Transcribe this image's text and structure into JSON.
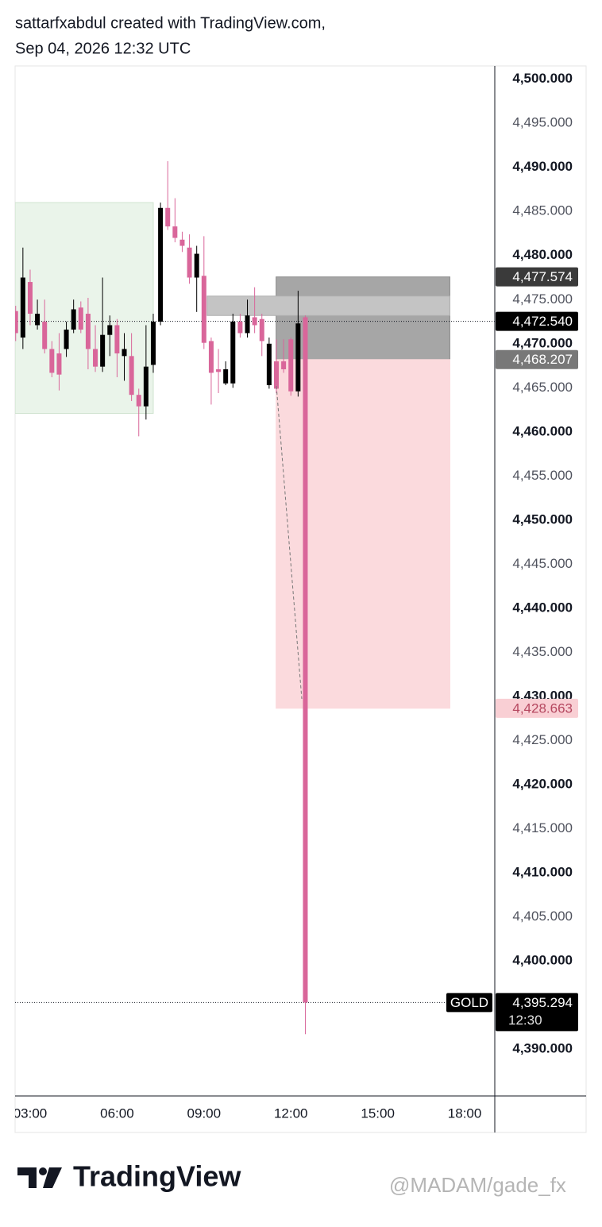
{
  "header": {
    "line1": "sattarfxabdul created with TradingView.com,",
    "line2": "Sep 04, 2026 12:32 UTC"
  },
  "chart_data": {
    "type": "candlestick",
    "symbol": "GOLD",
    "up_color": "#000000",
    "down_color": "#d9669a",
    "x": [
      2.5,
      2.75,
      3,
      3.25,
      3.5,
      3.75,
      4,
      4.25,
      4.5,
      4.75,
      5,
      5.25,
      5.5,
      5.75,
      6,
      6.25,
      6.5,
      6.75,
      7,
      7.25,
      7.5,
      7.75,
      8,
      8.25,
      8.5,
      8.75,
      9,
      9.25,
      9.5,
      9.75,
      10,
      10.25,
      10.5,
      10.75,
      11,
      11.25,
      11.5,
      11.75,
      12,
      12.25,
      12.5
    ],
    "open": [
      4473.7,
      4470.7,
      4477.0,
      4472.1,
      4472.5,
      4469.4,
      4468.9,
      4469.4,
      4471.6,
      4474.1,
      4473.4,
      4469.4,
      4467.4,
      4471.0,
      4472.1,
      4468.6,
      4468.6,
      4464.2,
      4462.9,
      4467.6,
      4472.5,
      4485.4,
      4483.3,
      4481.8,
      4480.9,
      4477.5,
      4477.7,
      4470.3,
      4467.1,
      4465.5,
      4465.5,
      4472.5,
      4471.2,
      4473.0,
      4472.8,
      4465.3,
      4468.0,
      4468.0,
      4470.5,
      4464.6,
      4473.0
    ],
    "high": [
      4474.3,
      4480.9,
      4478.4,
      4475.0,
      4475.0,
      4470.3,
      4471.2,
      4472.5,
      4475.0,
      4474.8,
      4475.2,
      4472.1,
      4477.5,
      4473.2,
      4472.8,
      4471.2,
      4471.2,
      4464.9,
      4472.1,
      4473.4,
      4486.0,
      4490.7,
      4486.5,
      4482.7,
      4482.4,
      4481.1,
      4482.2,
      4470.7,
      4469.4,
      4468.0,
      4473.4,
      4473.4,
      4475.0,
      4476.4,
      4473.4,
      4470.7,
      4470.5,
      4470.5,
      4470.7,
      4476.0,
      4473.2
    ],
    "low": [
      4470.3,
      4469.4,
      4472.1,
      4471.6,
      4468.9,
      4466.2,
      4464.7,
      4468.5,
      4471.2,
      4471.2,
      4467.1,
      4466.8,
      4466.8,
      4468.6,
      4466.2,
      4465.8,
      4463.5,
      4459.5,
      4461.4,
      4466.7,
      4472.1,
      4482.9,
      4481.5,
      4480.4,
      4476.8,
      4473.6,
      4469.4,
      4463.1,
      4464.4,
      4465.3,
      4465.0,
      4470.7,
      4470.7,
      4471.2,
      4468.6,
      4464.9,
      4464.4,
      4466.7,
      4464.1,
      4464.0,
      4391.7
    ],
    "close": [
      4471.2,
      4477.5,
      4473.4,
      4473.4,
      4469.4,
      4466.7,
      4466.5,
      4471.6,
      4473.9,
      4471.6,
      4469.4,
      4467.4,
      4471.0,
      4472.1,
      4468.9,
      4469.4,
      4464.2,
      4462.9,
      4467.4,
      4472.5,
      4485.4,
      4483.3,
      4482.0,
      4481.1,
      4477.5,
      4480.2,
      4470.1,
      4466.7,
      4466.8,
      4467.1,
      4472.5,
      4471.2,
      4473.2,
      4472.1,
      4470.3,
      4470.0,
      4464.9,
      4467.1,
      4464.6,
      4472.3,
      4395.294
    ],
    "xlim": [
      2.48,
      19.04
    ],
    "xticks": [
      {
        "value": 3,
        "label": "03:00"
      },
      {
        "value": 6,
        "label": "06:00"
      },
      {
        "value": 9,
        "label": "09:00"
      },
      {
        "value": 12,
        "label": "12:00"
      },
      {
        "value": 15,
        "label": "15:00"
      },
      {
        "value": 18,
        "label": "18:00"
      }
    ],
    "ylim": [
      4384.7,
      4501.5
    ],
    "yticks": [
      {
        "value": 4390,
        "label": "4,390.000"
      },
      {
        "value": 4395,
        "label": "4,395.000"
      },
      {
        "value": 4400,
        "label": "4,400.000"
      },
      {
        "value": 4405,
        "label": "4,405.000"
      },
      {
        "value": 4410,
        "label": "4,410.000"
      },
      {
        "value": 4415,
        "label": "4,415.000"
      },
      {
        "value": 4420,
        "label": "4,420.000"
      },
      {
        "value": 4425,
        "label": "4,425.000"
      },
      {
        "value": 4430,
        "label": "4,430.000"
      },
      {
        "value": 4435,
        "label": "4,435.000"
      },
      {
        "value": 4440,
        "label": "4,440.000"
      },
      {
        "value": 4445,
        "label": "4,445.000"
      },
      {
        "value": 4450,
        "label": "4,450.000"
      },
      {
        "value": 4455,
        "label": "4,455.000"
      },
      {
        "value": 4460,
        "label": "4,460.000"
      },
      {
        "value": 4465,
        "label": "4,465.000"
      },
      {
        "value": 4470,
        "label": "4,470.000"
      },
      {
        "value": 4475,
        "label": "4,475.000"
      },
      {
        "value": 4480,
        "label": "4,480.000"
      },
      {
        "value": 4485,
        "label": "4,485.000"
      },
      {
        "value": 4490,
        "label": "4,490.000"
      },
      {
        "value": 4495,
        "label": "4,495.000"
      },
      {
        "value": 4500,
        "label": "4,500.000"
      }
    ],
    "grid": false,
    "rectangles": [
      {
        "x0": 2.48,
        "x1": 7.25,
        "y0": 4462.1,
        "y1": 4486.0,
        "color": "#eaf4ea",
        "border": "#cfe3cf"
      },
      {
        "x0": 11.49,
        "x1": 17.49,
        "y0": 4468.207,
        "y1": 4477.574,
        "color": "#a6a6a6",
        "border": "#8c8c8c"
      },
      {
        "x0": 11.49,
        "x1": 17.49,
        "y0": 4428.663,
        "y1": 4468.207,
        "color": "#fbdadd",
        "border": "#fbdadd"
      },
      {
        "x0": 9.11,
        "x1": 17.49,
        "y0": 4473.2,
        "y1": 4475.4,
        "color": "#c4c4c4",
        "border": "#b0b0b0"
      }
    ],
    "price_tags": [
      {
        "value": 4477.574,
        "label": "4,477.574",
        "color": "#3a3a3a",
        "text_color": "#ffffff"
      },
      {
        "value": 4472.54,
        "label": "4,472.540",
        "color": "#000000",
        "text_color": "#ffffff",
        "line": true
      },
      {
        "value": 4468.207,
        "label": "4,468.207",
        "color": "#787878",
        "text_color": "#ffffff"
      },
      {
        "value": 4428.663,
        "label": "4,428.663",
        "color": "#f9cfd4",
        "text_color": "#b5475f"
      }
    ],
    "last_tag": {
      "value": 4395.294,
      "label": "4,395.294",
      "time": "12:30"
    }
  },
  "footer": {
    "logo": "TradingView",
    "watermark": "@MADAM/gade_fx"
  }
}
